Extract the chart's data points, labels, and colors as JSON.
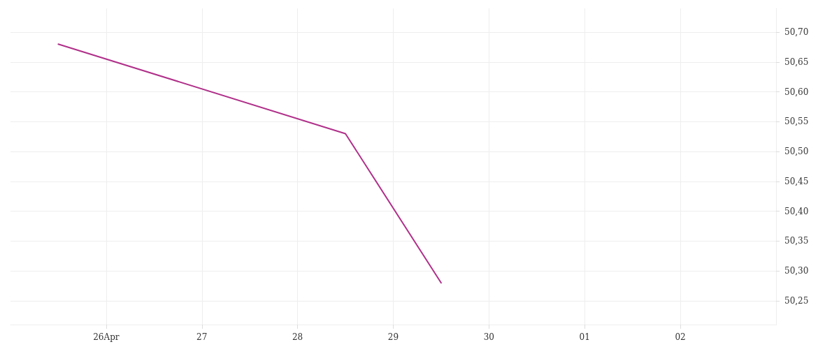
{
  "chart_data": {
    "type": "line",
    "x": [
      "--04-25T12:00",
      "--04-28T12:00",
      "--04-29T12:00"
    ],
    "series": [
      {
        "color": "#b0308a",
        "values": [
          50.68,
          50.53,
          50.28
        ]
      }
    ],
    "xlim": [
      "--04-25",
      "--05-03"
    ],
    "xticks": [
      {
        "value": "--04-26",
        "label": "26Apr"
      },
      {
        "value": "--04-27",
        "label": "27"
      },
      {
        "value": "--04-28",
        "label": "28"
      },
      {
        "value": "--04-29",
        "label": "29"
      },
      {
        "value": "--04-30",
        "label": "30"
      },
      {
        "value": "--05-01",
        "label": "01"
      },
      {
        "value": "--05-02",
        "label": "02"
      }
    ],
    "ylim": [
      50.21,
      50.74
    ],
    "yticks": [
      {
        "value": 50.25,
        "label": "50,25"
      },
      {
        "value": 50.3,
        "label": "50,30"
      },
      {
        "value": 50.35,
        "label": "50,35"
      },
      {
        "value": 50.4,
        "label": "50,40"
      },
      {
        "value": 50.45,
        "label": "50,45"
      },
      {
        "value": 50.5,
        "label": "50,50"
      },
      {
        "value": 50.55,
        "label": "50,55"
      },
      {
        "value": 50.6,
        "label": "50,60"
      },
      {
        "value": 50.65,
        "label": "50,65"
      },
      {
        "value": 50.7,
        "label": "50,70"
      }
    ],
    "grid": true,
    "marker": "none",
    "line_style": "solid"
  }
}
